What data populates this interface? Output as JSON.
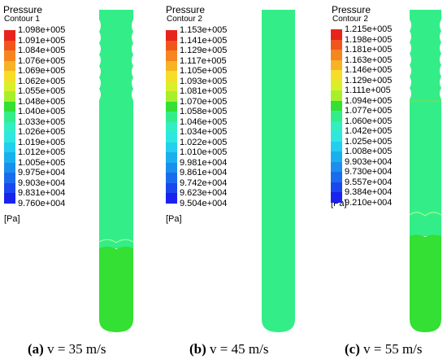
{
  "panels": [
    {
      "legend_title": "Pressure",
      "legend_subtitle": "Contour 1",
      "ticks": [
        "1.098e+005",
        "1.091e+005",
        "1.084e+005",
        "1.076e+005",
        "1.069e+005",
        "1.062e+005",
        "1.055e+005",
        "1.048e+005",
        "1.040e+005",
        "1.033e+005",
        "1.026e+005",
        "1.019e+005",
        "1.012e+005",
        "1.005e+005",
        "9.975e+004",
        "9.903e+004",
        "9.831e+004",
        "9.760e+004"
      ],
      "unit": "[Pa]",
      "caption_letter": "(a)",
      "caption_text": " v = 35 m/s",
      "liquid_color": "#33e033",
      "gas_color": "#33ee88"
    },
    {
      "legend_title": "Pressure",
      "legend_subtitle": "Contour 2",
      "ticks": [
        "1.153e+005",
        "1.141e+005",
        "1.129e+005",
        "1.117e+005",
        "1.105e+005",
        "1.093e+005",
        "1.081e+005",
        "1.070e+005",
        "1.058e+005",
        "1.046e+005",
        "1.034e+005",
        "1.022e+005",
        "1.010e+005",
        "9.981e+004",
        "9.861e+004",
        "9.742e+004",
        "9.623e+004",
        "9.504e+004"
      ],
      "unit": "[Pa]",
      "caption_letter": "(b)",
      "caption_text": " v = 45 m/s",
      "liquid_color": "#33ee88",
      "gas_color": "#33ee88"
    },
    {
      "legend_title": "Pressure",
      "legend_subtitle": "Contour 2",
      "ticks": [
        "1.215e+005",
        "1.198e+005",
        "1.181e+005",
        "1.163e+005",
        "1.146e+005",
        "1.129e+005",
        "1.111e+005",
        "1.094e+005",
        "1.077e+005",
        "1.060e+005",
        "1.042e+005",
        "1.025e+005",
        "1.008e+005",
        "9.903e+004",
        "9.730e+004",
        "9.557e+004",
        "9.384e+004",
        "9.210e+004"
      ],
      "unit": "[Pa]",
      "caption_letter": "(c)",
      "caption_text": " v = 55 m/s",
      "liquid_color": "#33e033",
      "gas_color": "#33ee88"
    }
  ],
  "colorbar": [
    "#e8231b",
    "#f0561c",
    "#f5861f",
    "#f7b324",
    "#f6dd27",
    "#d9ef2a",
    "#a8ef2b",
    "#33e033",
    "#33ee88",
    "#33eec0",
    "#2ee8e0",
    "#22cfee",
    "#1ab0ee",
    "#1a8fee",
    "#1a6cee",
    "#1a48ee",
    "#1a22ee"
  ]
}
